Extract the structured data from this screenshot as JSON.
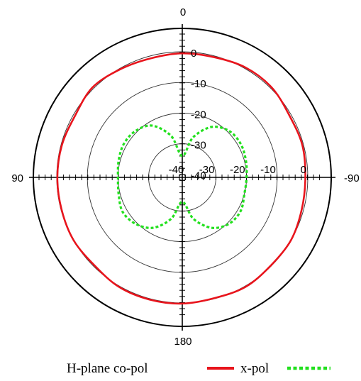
{
  "chart_data": {
    "type": "polar",
    "title": "",
    "angle_labels": {
      "top": "0",
      "bottom": "180",
      "left": "90",
      "right": "-90"
    },
    "radial_tick_labels": [
      "-40",
      "-30",
      "-20",
      "-10",
      "0"
    ],
    "radial_tick_labels_right": [
      "-40",
      "-30",
      "-20",
      "-10",
      "0"
    ],
    "rlim": [
      -40,
      0
    ],
    "grid": true,
    "legend_position": "bottom",
    "series": [
      {
        "name": "H-plane co-pol",
        "color": "#e8141c",
        "style": "solid",
        "angles_deg": [
          0,
          15,
          30,
          45,
          60,
          75,
          90,
          105,
          120,
          135,
          150,
          165,
          180,
          195,
          210,
          225,
          240,
          255,
          270,
          285,
          300,
          315,
          330,
          345,
          360
        ],
        "values_db": [
          -0.5,
          -0.8,
          -0.3,
          0.5,
          -0.6,
          -0.3,
          -0.2,
          -0.2,
          0.0,
          -0.4,
          0.3,
          0.3,
          0.2,
          -0.2,
          0.3,
          -0.2,
          0.0,
          -0.6,
          -0.8,
          -0.4,
          -0.6,
          0.4,
          0.4,
          -0.4,
          -0.5
        ]
      },
      {
        "name": "x-pol",
        "color": "#22e01e",
        "style": "dotted",
        "angles_deg": [
          0,
          15,
          30,
          45,
          60,
          75,
          90,
          105,
          120,
          135,
          150,
          165,
          180,
          195,
          210,
          225,
          240,
          255,
          270,
          285,
          300,
          315,
          330,
          345,
          360
        ],
        "values_db": [
          -34,
          -27,
          -21.5,
          -19.5,
          -19,
          -19.5,
          -20,
          -19.5,
          -18.5,
          -19.5,
          -22,
          -27,
          -33,
          -27,
          -22,
          -19.5,
          -19,
          -20,
          -20,
          -19.5,
          -19,
          -19.5,
          -22,
          -27.5,
          -34
        ]
      }
    ]
  },
  "legend": {
    "copol_label": "H-plane co-pol",
    "xpol_label": "x-pol"
  }
}
